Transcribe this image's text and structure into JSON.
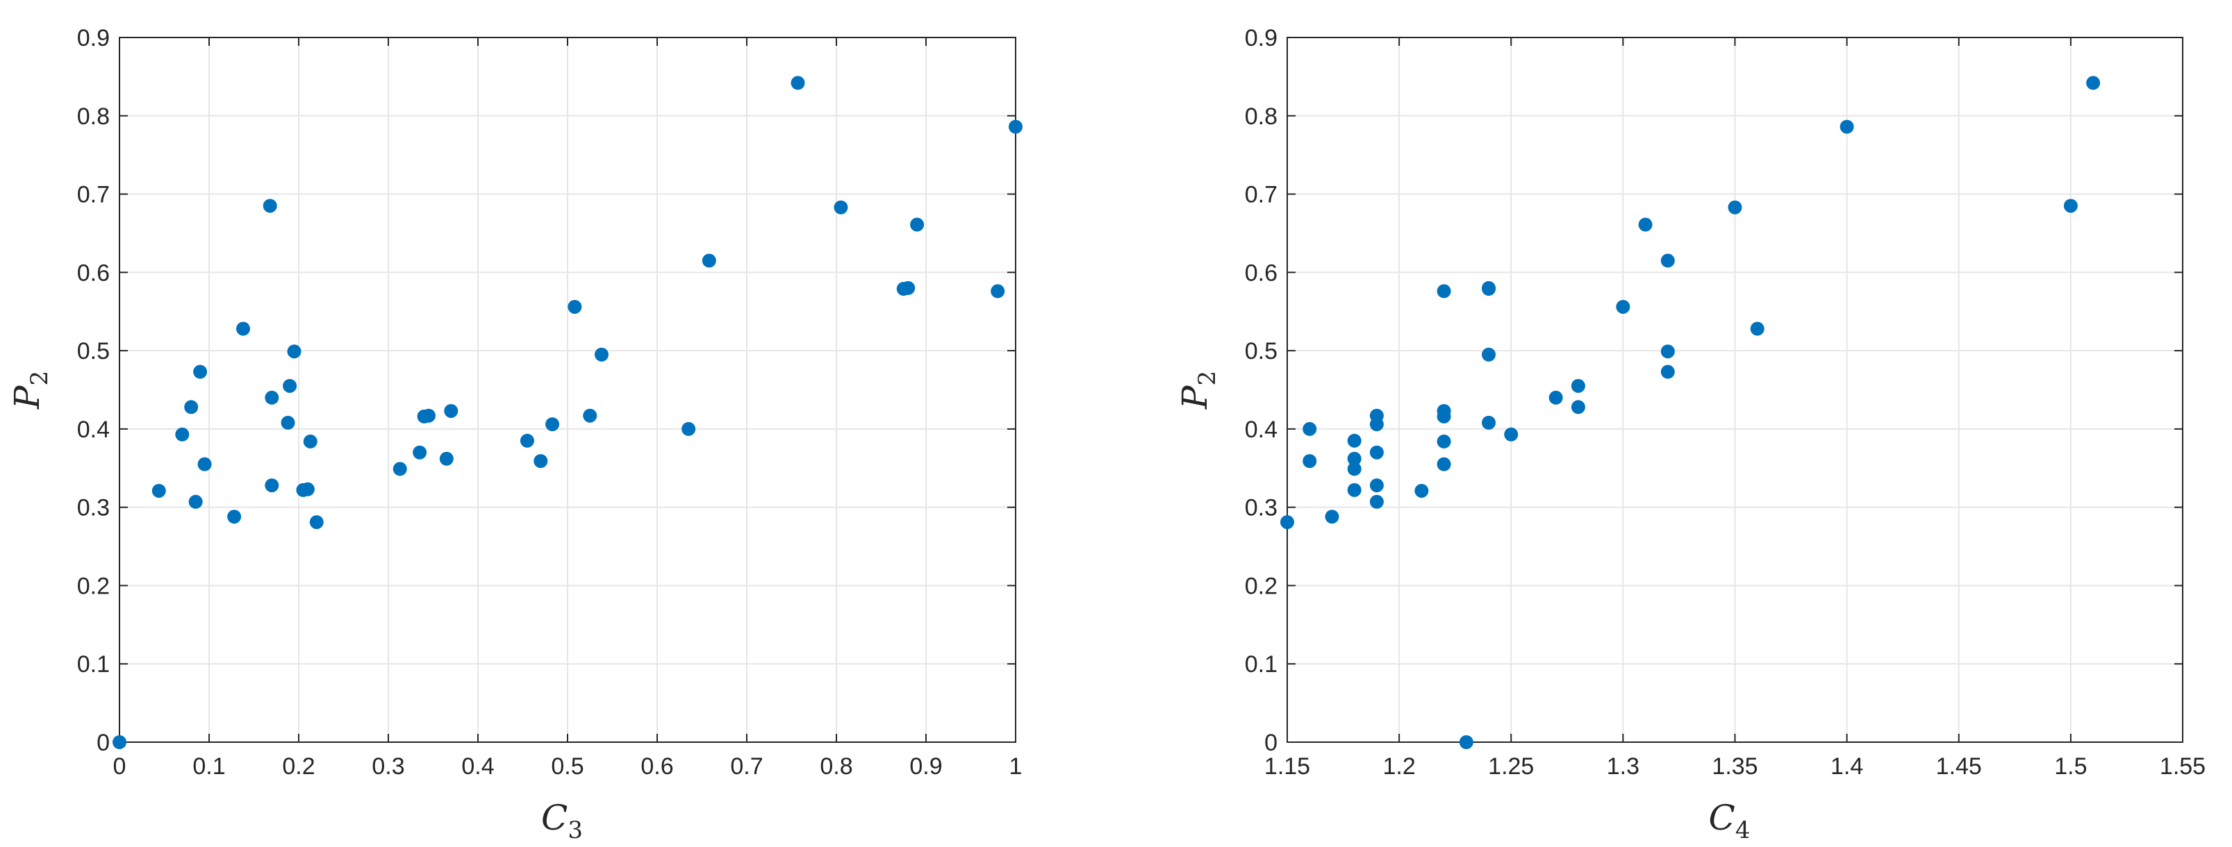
{
  "colors": {
    "marker": "#0072BD",
    "grid": "#e6e6e6",
    "axes": "#262626"
  },
  "chart_data": [
    {
      "type": "scatter",
      "xlabel_main": "C",
      "xlabel_sub": "3",
      "ylabel_main": "P",
      "ylabel_sub": "2",
      "xlim": [
        0,
        1
      ],
      "ylim": [
        0,
        0.9
      ],
      "x_ticks": [
        "0",
        "0.1",
        "0.2",
        "0.3",
        "0.4",
        "0.5",
        "0.6",
        "0.7",
        "0.8",
        "0.9",
        "1"
      ],
      "y_ticks": [
        "0",
        "0.1",
        "0.2",
        "0.3",
        "0.4",
        "0.5",
        "0.6",
        "0.7",
        "0.8",
        "0.9"
      ],
      "grid": true,
      "series": [
        {
          "points": [
            [
              0,
              0
            ],
            [
              0.044,
              0.321
            ],
            [
              0.07,
              0.393
            ],
            [
              0.08,
              0.428
            ],
            [
              0.085,
              0.307
            ],
            [
              0.09,
              0.473
            ],
            [
              0.095,
              0.355
            ],
            [
              0.128,
              0.288
            ],
            [
              0.138,
              0.528
            ],
            [
              0.168,
              0.685
            ],
            [
              0.17,
              0.328
            ],
            [
              0.17,
              0.44
            ],
            [
              0.188,
              0.408
            ],
            [
              0.19,
              0.455
            ],
            [
              0.195,
              0.499
            ],
            [
              0.205,
              0.322
            ],
            [
              0.21,
              0.323
            ],
            [
              0.213,
              0.384
            ],
            [
              0.22,
              0.281
            ],
            [
              0.313,
              0.349
            ],
            [
              0.335,
              0.37
            ],
            [
              0.34,
              0.416
            ],
            [
              0.345,
              0.417
            ],
            [
              0.365,
              0.362
            ],
            [
              0.37,
              0.423
            ],
            [
              0.455,
              0.385
            ],
            [
              0.47,
              0.359
            ],
            [
              0.483,
              0.406
            ],
            [
              0.508,
              0.556
            ],
            [
              0.525,
              0.417
            ],
            [
              0.538,
              0.495
            ],
            [
              0.635,
              0.4
            ],
            [
              0.658,
              0.615
            ],
            [
              0.757,
              0.842
            ],
            [
              0.805,
              0.683
            ],
            [
              0.875,
              0.579
            ],
            [
              0.88,
              0.58
            ],
            [
              0.89,
              0.661
            ],
            [
              0.98,
              0.576
            ],
            [
              1.0,
              0.786
            ]
          ]
        }
      ]
    },
    {
      "type": "scatter",
      "xlabel_main": "C",
      "xlabel_sub": "4",
      "ylabel_main": "P",
      "ylabel_sub": "2",
      "xlim": [
        1.15,
        1.55
      ],
      "ylim": [
        0,
        0.9
      ],
      "x_ticks": [
        "1.15",
        "1.2",
        "1.25",
        "1.3",
        "1.35",
        "1.4",
        "1.45",
        "1.5",
        "1.55"
      ],
      "y_ticks": [
        "0",
        "0.1",
        "0.2",
        "0.3",
        "0.4",
        "0.5",
        "0.6",
        "0.7",
        "0.8",
        "0.9"
      ],
      "grid": true,
      "series": [
        {
          "points": [
            [
              1.15,
              0.281
            ],
            [
              1.16,
              0.4
            ],
            [
              1.16,
              0.359
            ],
            [
              1.17,
              0.288
            ],
            [
              1.18,
              0.385
            ],
            [
              1.18,
              0.362
            ],
            [
              1.18,
              0.349
            ],
            [
              1.18,
              0.322
            ],
            [
              1.19,
              0.417
            ],
            [
              1.19,
              0.406
            ],
            [
              1.19,
              0.37
            ],
            [
              1.19,
              0.328
            ],
            [
              1.19,
              0.307
            ],
            [
              1.21,
              0.321
            ],
            [
              1.22,
              0.576
            ],
            [
              1.22,
              0.423
            ],
            [
              1.22,
              0.416
            ],
            [
              1.22,
              0.384
            ],
            [
              1.22,
              0.355
            ],
            [
              1.23,
              0
            ],
            [
              1.24,
              0.58
            ],
            [
              1.24,
              0.579
            ],
            [
              1.24,
              0.495
            ],
            [
              1.24,
              0.408
            ],
            [
              1.25,
              0.393
            ],
            [
              1.27,
              0.44
            ],
            [
              1.28,
              0.455
            ],
            [
              1.28,
              0.428
            ],
            [
              1.3,
              0.556
            ],
            [
              1.31,
              0.661
            ],
            [
              1.32,
              0.615
            ],
            [
              1.32,
              0.499
            ],
            [
              1.32,
              0.473
            ],
            [
              1.35,
              0.683
            ],
            [
              1.36,
              0.528
            ],
            [
              1.4,
              0.786
            ],
            [
              1.5,
              0.685
            ],
            [
              1.51,
              0.842
            ]
          ]
        }
      ]
    }
  ]
}
